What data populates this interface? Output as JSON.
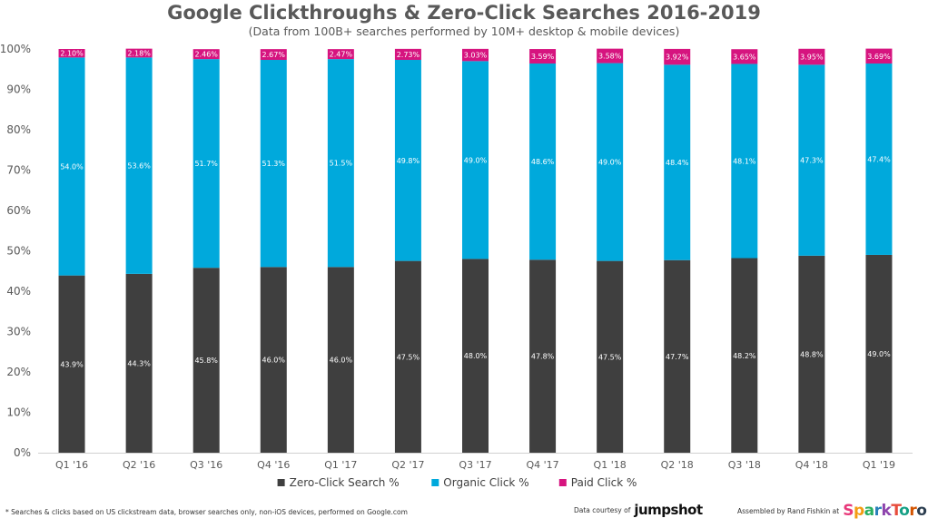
{
  "chart_data": {
    "type": "bar",
    "stacked": true,
    "title": "Google Clickthroughs & Zero-Click Searches 2016-2019",
    "subtitle": "(Data from 100B+ searches performed by 10M+ desktop & mobile devices)",
    "categories": [
      "Q1 '16",
      "Q2 '16",
      "Q3 '16",
      "Q4 '16",
      "Q1 '17",
      "Q2 '17",
      "Q3 '17",
      "Q4 '17",
      "Q1 '18",
      "Q2 '18",
      "Q3 '18",
      "Q4 '18",
      "Q1 '19"
    ],
    "series": [
      {
        "name": "Zero-Click Search %",
        "color": "#3f3f3f",
        "values": [
          43.9,
          44.3,
          45.8,
          46.0,
          46.0,
          47.5,
          48.0,
          47.8,
          47.5,
          47.7,
          48.2,
          48.8,
          49.0
        ],
        "labels": [
          "43.9%",
          "44.3%",
          "45.8%",
          "46.0%",
          "46.0%",
          "47.5%",
          "48.0%",
          "47.8%",
          "47.5%",
          "47.7%",
          "48.2%",
          "48.8%",
          "49.0%"
        ]
      },
      {
        "name": "Organic Click %",
        "color": "#00a9dc",
        "values": [
          54.0,
          53.6,
          51.7,
          51.3,
          51.5,
          49.8,
          49.0,
          48.6,
          49.0,
          48.4,
          48.1,
          47.3,
          47.4
        ],
        "labels": [
          "54.0%",
          "53.6%",
          "51.7%",
          "51.3%",
          "51.5%",
          "49.8%",
          "49.0%",
          "48.6%",
          "49.0%",
          "48.4%",
          "48.1%",
          "47.3%",
          "47.4%"
        ]
      },
      {
        "name": "Paid Click %",
        "color": "#d6147f",
        "values": [
          2.1,
          2.18,
          2.46,
          2.67,
          2.47,
          2.73,
          3.03,
          3.59,
          3.58,
          3.92,
          3.65,
          3.95,
          3.69
        ],
        "labels": [
          "2.10%",
          "2.18%",
          "2.46%",
          "2.67%",
          "2.47%",
          "2.73%",
          "3.03%",
          "3.59%",
          "3.58%",
          "3.92%",
          "3.65%",
          "3.95%",
          "3.69%"
        ]
      }
    ],
    "yticks": [
      "0%",
      "10%",
      "20%",
      "30%",
      "40%",
      "50%",
      "60%",
      "70%",
      "80%",
      "90%",
      "100%"
    ],
    "ylim": [
      0,
      100
    ],
    "grid": false,
    "legend_position": "bottom"
  },
  "footer": {
    "footnote": "* Searches & clicks based on US clickstream data, browser searches only, non-iOS devices, performed on Google.com",
    "courtesy_label": "Data courtesy of",
    "courtesy_brand": "jumpshot",
    "assembled_label": "Assembled by Rand Fishkin at",
    "assembled_brand": "SparkToro"
  }
}
